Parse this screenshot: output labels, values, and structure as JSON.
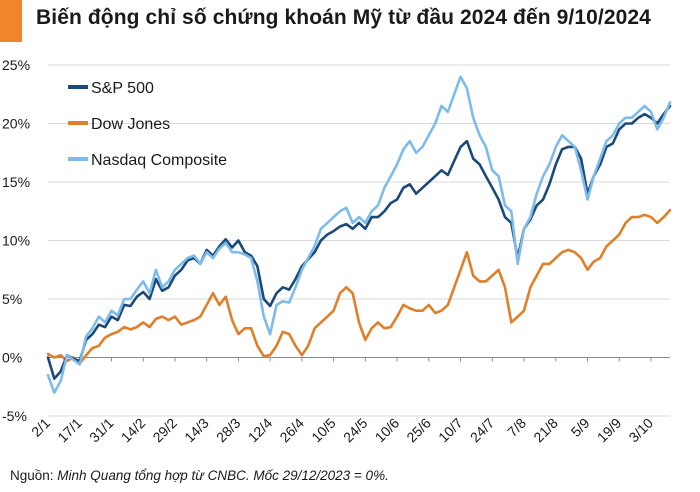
{
  "header": {
    "title": "Biến động chỉ số chứng khoán Mỹ từ đầu 2024 đến 9/10/2024",
    "accent_color": "#f0852d"
  },
  "footer": {
    "source_label": "Nguồn: ",
    "source_text": "Minh Quang tổng hợp từ CNBC. Mốc 29/12/2023 = 0%."
  },
  "chart_data": {
    "type": "line",
    "title": "Biến động chỉ số chứng khoán Mỹ từ đầu 2024 đến 9/10/2024",
    "xlabel": "",
    "ylabel": "",
    "ylim": [
      -5,
      25
    ],
    "yticks": [
      -5,
      0,
      5,
      10,
      15,
      20,
      25
    ],
    "ytick_labels": [
      "-5%",
      "0%",
      "5%",
      "10%",
      "15%",
      "20%",
      "25%"
    ],
    "grid": "horizontal",
    "legend_position": "top-left",
    "x_tick_labels": [
      "2/1",
      "17/1",
      "31/1",
      "14/2",
      "29/2",
      "14/3",
      "28/3",
      "12/4",
      "26/4",
      "10/5",
      "24/5",
      "10/6",
      "25/6",
      "10/7",
      "24/7",
      "7/8",
      "21/8",
      "5/9",
      "19/9",
      "3/10"
    ],
    "x_tick_index": [
      0,
      10,
      20,
      30,
      40,
      50,
      60,
      70,
      80,
      90,
      100,
      110,
      120,
      130,
      140,
      150,
      160,
      170,
      180,
      190
    ],
    "n_points": 197,
    "series": [
      {
        "name": "S&P 500",
        "color": "#1c4a78",
        "values": [
          [
            0,
            0
          ],
          [
            2,
            -1.8
          ],
          [
            4,
            -1.2
          ],
          [
            6,
            0.2
          ],
          [
            8,
            -0.1
          ],
          [
            10,
            -0.3
          ],
          [
            12,
            1.5
          ],
          [
            14,
            2.0
          ],
          [
            16,
            2.8
          ],
          [
            18,
            2.6
          ],
          [
            20,
            3.5
          ],
          [
            22,
            3.2
          ],
          [
            24,
            4.5
          ],
          [
            26,
            4.4
          ],
          [
            28,
            5.2
          ],
          [
            30,
            5.6
          ],
          [
            32,
            5.0
          ],
          [
            34,
            6.7
          ],
          [
            36,
            5.7
          ],
          [
            38,
            6.0
          ],
          [
            40,
            7.0
          ],
          [
            42,
            7.5
          ],
          [
            44,
            8.3
          ],
          [
            46,
            8.5
          ],
          [
            48,
            8.0
          ],
          [
            50,
            9.2
          ],
          [
            52,
            8.7
          ],
          [
            54,
            9.5
          ],
          [
            56,
            10.1
          ],
          [
            58,
            9.4
          ],
          [
            60,
            10.0
          ],
          [
            62,
            9.0
          ],
          [
            64,
            8.7
          ],
          [
            66,
            7.8
          ],
          [
            68,
            5.0
          ],
          [
            70,
            4.4
          ],
          [
            72,
            5.5
          ],
          [
            74,
            6.0
          ],
          [
            76,
            5.8
          ],
          [
            78,
            6.7
          ],
          [
            80,
            7.8
          ],
          [
            82,
            8.4
          ],
          [
            84,
            9.0
          ],
          [
            86,
            10.0
          ],
          [
            88,
            10.5
          ],
          [
            90,
            10.8
          ],
          [
            92,
            11.2
          ],
          [
            94,
            11.4
          ],
          [
            96,
            11.0
          ],
          [
            98,
            11.5
          ],
          [
            100,
            11.0
          ],
          [
            102,
            12.0
          ],
          [
            104,
            12.0
          ],
          [
            106,
            12.5
          ],
          [
            108,
            13.2
          ],
          [
            110,
            13.5
          ],
          [
            112,
            14.5
          ],
          [
            114,
            14.8
          ],
          [
            116,
            14.0
          ],
          [
            118,
            14.5
          ],
          [
            120,
            15.0
          ],
          [
            122,
            15.5
          ],
          [
            124,
            16.0
          ],
          [
            126,
            15.6
          ],
          [
            128,
            16.8
          ],
          [
            130,
            18.0
          ],
          [
            132,
            18.5
          ],
          [
            134,
            17.0
          ],
          [
            136,
            16.5
          ],
          [
            138,
            15.5
          ],
          [
            140,
            14.5
          ],
          [
            142,
            13.5
          ],
          [
            144,
            12.0
          ],
          [
            146,
            11.5
          ],
          [
            148,
            8.5
          ],
          [
            150,
            11.0
          ],
          [
            152,
            11.8
          ],
          [
            154,
            13.0
          ],
          [
            156,
            13.5
          ],
          [
            158,
            14.8
          ],
          [
            160,
            16.5
          ],
          [
            162,
            17.8
          ],
          [
            164,
            18.0
          ],
          [
            166,
            18.0
          ],
          [
            168,
            17.0
          ],
          [
            170,
            14.0
          ],
          [
            172,
            15.5
          ],
          [
            174,
            16.5
          ],
          [
            176,
            18.0
          ],
          [
            178,
            18.3
          ],
          [
            180,
            19.5
          ],
          [
            182,
            20.0
          ],
          [
            184,
            20.0
          ],
          [
            186,
            20.5
          ],
          [
            188,
            20.8
          ],
          [
            190,
            20.5
          ],
          [
            192,
            20.0
          ],
          [
            194,
            20.8
          ],
          [
            196,
            21.5
          ]
        ]
      },
      {
        "name": "Dow Jones",
        "color": "#e07f2a",
        "values": [
          [
            0,
            0.3
          ],
          [
            2,
            0.0
          ],
          [
            4,
            0.2
          ],
          [
            6,
            -0.3
          ],
          [
            8,
            0.0
          ],
          [
            10,
            -0.5
          ],
          [
            12,
            0.2
          ],
          [
            14,
            0.8
          ],
          [
            16,
            1.0
          ],
          [
            18,
            1.7
          ],
          [
            20,
            2.0
          ],
          [
            22,
            2.2
          ],
          [
            24,
            2.6
          ],
          [
            26,
            2.4
          ],
          [
            28,
            2.6
          ],
          [
            30,
            3.0
          ],
          [
            32,
            2.6
          ],
          [
            34,
            3.3
          ],
          [
            36,
            3.5
          ],
          [
            38,
            3.2
          ],
          [
            40,
            3.5
          ],
          [
            42,
            2.8
          ],
          [
            44,
            3.0
          ],
          [
            46,
            3.2
          ],
          [
            48,
            3.5
          ],
          [
            50,
            4.5
          ],
          [
            52,
            5.5
          ],
          [
            54,
            4.5
          ],
          [
            56,
            5.2
          ],
          [
            58,
            3.2
          ],
          [
            60,
            2.0
          ],
          [
            62,
            2.5
          ],
          [
            64,
            2.5
          ],
          [
            66,
            1.0
          ],
          [
            68,
            0.1
          ],
          [
            70,
            0.2
          ],
          [
            72,
            1.0
          ],
          [
            74,
            2.2
          ],
          [
            76,
            2.0
          ],
          [
            78,
            1.0
          ],
          [
            80,
            0.2
          ],
          [
            82,
            1.0
          ],
          [
            84,
            2.5
          ],
          [
            86,
            3.0
          ],
          [
            88,
            3.5
          ],
          [
            90,
            4.0
          ],
          [
            92,
            5.5
          ],
          [
            94,
            6.0
          ],
          [
            96,
            5.5
          ],
          [
            98,
            3.0
          ],
          [
            100,
            1.5
          ],
          [
            102,
            2.5
          ],
          [
            104,
            3.0
          ],
          [
            106,
            2.5
          ],
          [
            108,
            2.6
          ],
          [
            110,
            3.5
          ],
          [
            112,
            4.5
          ],
          [
            114,
            4.2
          ],
          [
            116,
            4.0
          ],
          [
            118,
            4.0
          ],
          [
            120,
            4.5
          ],
          [
            122,
            3.8
          ],
          [
            124,
            4.0
          ],
          [
            126,
            4.5
          ],
          [
            128,
            6.0
          ],
          [
            130,
            7.5
          ],
          [
            132,
            9.0
          ],
          [
            134,
            7.0
          ],
          [
            136,
            6.5
          ],
          [
            138,
            6.5
          ],
          [
            140,
            7.0
          ],
          [
            142,
            7.5
          ],
          [
            144,
            6.0
          ],
          [
            146,
            3.0
          ],
          [
            148,
            3.5
          ],
          [
            150,
            4.0
          ],
          [
            152,
            6.0
          ],
          [
            154,
            7.0
          ],
          [
            156,
            8.0
          ],
          [
            158,
            8.0
          ],
          [
            160,
            8.5
          ],
          [
            162,
            9.0
          ],
          [
            164,
            9.2
          ],
          [
            166,
            9.0
          ],
          [
            168,
            8.5
          ],
          [
            170,
            7.5
          ],
          [
            172,
            8.2
          ],
          [
            174,
            8.5
          ],
          [
            176,
            9.5
          ],
          [
            178,
            10.0
          ],
          [
            180,
            10.5
          ],
          [
            182,
            11.5
          ],
          [
            184,
            12.0
          ],
          [
            186,
            12.0
          ],
          [
            188,
            12.2
          ],
          [
            190,
            12.0
          ],
          [
            192,
            11.5
          ],
          [
            194,
            12.0
          ],
          [
            196,
            12.6
          ]
        ]
      },
      {
        "name": "Nasdaq Composite",
        "color": "#7dbcea",
        "values": [
          [
            0,
            -1.5
          ],
          [
            2,
            -3.0
          ],
          [
            4,
            -2.0
          ],
          [
            6,
            0.2
          ],
          [
            8,
            -0.2
          ],
          [
            10,
            -0.6
          ],
          [
            12,
            1.8
          ],
          [
            14,
            2.5
          ],
          [
            16,
            3.5
          ],
          [
            18,
            3.0
          ],
          [
            20,
            4.0
          ],
          [
            22,
            3.6
          ],
          [
            24,
            5.0
          ],
          [
            26,
            5.0
          ],
          [
            28,
            5.8
          ],
          [
            30,
            6.5
          ],
          [
            32,
            5.5
          ],
          [
            34,
            7.5
          ],
          [
            36,
            6.0
          ],
          [
            38,
            6.5
          ],
          [
            40,
            7.5
          ],
          [
            42,
            8.0
          ],
          [
            44,
            8.5
          ],
          [
            46,
            8.7
          ],
          [
            48,
            8.0
          ],
          [
            50,
            9.0
          ],
          [
            52,
            8.5
          ],
          [
            54,
            9.3
          ],
          [
            56,
            9.8
          ],
          [
            58,
            9.0
          ],
          [
            60,
            9.0
          ],
          [
            62,
            8.8
          ],
          [
            64,
            8.5
          ],
          [
            66,
            6.5
          ],
          [
            68,
            3.5
          ],
          [
            70,
            2.0
          ],
          [
            72,
            4.5
          ],
          [
            74,
            4.8
          ],
          [
            76,
            4.7
          ],
          [
            78,
            6.0
          ],
          [
            80,
            7.5
          ],
          [
            82,
            8.5
          ],
          [
            84,
            9.5
          ],
          [
            86,
            11.0
          ],
          [
            88,
            11.5
          ],
          [
            90,
            12.0
          ],
          [
            92,
            12.5
          ],
          [
            94,
            12.8
          ],
          [
            96,
            11.5
          ],
          [
            98,
            12.0
          ],
          [
            100,
            11.5
          ],
          [
            102,
            12.5
          ],
          [
            104,
            13.0
          ],
          [
            106,
            14.5
          ],
          [
            108,
            15.5
          ],
          [
            110,
            16.5
          ],
          [
            112,
            17.8
          ],
          [
            114,
            18.5
          ],
          [
            116,
            17.5
          ],
          [
            118,
            18.0
          ],
          [
            120,
            19.0
          ],
          [
            122,
            20.0
          ],
          [
            124,
            21.5
          ],
          [
            126,
            21.0
          ],
          [
            128,
            22.5
          ],
          [
            130,
            24.0
          ],
          [
            132,
            23.0
          ],
          [
            134,
            20.5
          ],
          [
            136,
            19.0
          ],
          [
            138,
            18.0
          ],
          [
            140,
            16.0
          ],
          [
            142,
            15.5
          ],
          [
            144,
            13.0
          ],
          [
            146,
            12.5
          ],
          [
            148,
            8.0
          ],
          [
            150,
            11.0
          ],
          [
            152,
            12.0
          ],
          [
            154,
            14.0
          ],
          [
            156,
            15.5
          ],
          [
            158,
            16.5
          ],
          [
            160,
            18.0
          ],
          [
            162,
            19.0
          ],
          [
            164,
            18.5
          ],
          [
            166,
            18.0
          ],
          [
            168,
            16.0
          ],
          [
            170,
            13.5
          ],
          [
            172,
            15.5
          ],
          [
            174,
            17.0
          ],
          [
            176,
            18.5
          ],
          [
            178,
            19.0
          ],
          [
            180,
            20.0
          ],
          [
            182,
            20.5
          ],
          [
            184,
            20.5
          ],
          [
            186,
            21.0
          ],
          [
            188,
            21.5
          ],
          [
            190,
            21.0
          ],
          [
            192,
            19.5
          ],
          [
            194,
            20.5
          ],
          [
            196,
            21.8
          ]
        ]
      }
    ]
  }
}
